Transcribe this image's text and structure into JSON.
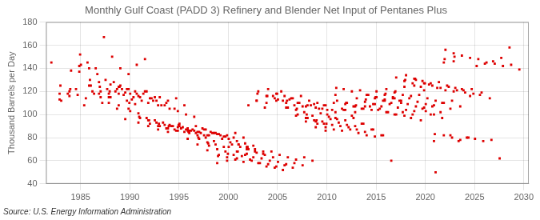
{
  "chart_data": {
    "type": "scatter",
    "title": "Monthly Gulf Coast (PADD 3) Refinery and Blender Net Input of Pentanes Plus",
    "ylabel": "Thousand Barrels per Day",
    "annotations": [
      "Source: U.S. Energy Information Administration"
    ],
    "color": "#dd0000",
    "marker": "square",
    "grid": true,
    "xlim": [
      1981.5,
      2030.5
    ],
    "ylim": [
      40,
      180
    ],
    "xticks": [
      1985,
      1990,
      1995,
      2000,
      2005,
      2010,
      2015,
      2020,
      2025,
      2030
    ],
    "yticks": [
      40,
      60,
      80,
      100,
      120,
      140,
      160,
      180
    ],
    "x": [
      1982.0417,
      1982.875,
      1983.7083,
      1984.5417,
      1985.375,
      1986.2083,
      1987.0417,
      1987.875,
      1988.7083,
      1989.5417,
      1982.875,
      1982.9583,
      1983.0417,
      1983.875,
      1984.7083,
      1985.5417,
      1986.375,
      1987.2083,
      1988.0417,
      1988.875,
      1989.7083,
      1990.5417,
      1983.875,
      1983.9583,
      1984.0417,
      1984.875,
      1985.7083,
      1986.5417,
      1987.375,
      1988.2083,
      1989.0417,
      1989.875,
      1990.7083,
      1991.5417,
      1984.875,
      1984.9583,
      1985.0417,
      1985.875,
      1986.7083,
      1987.5417,
      1988.375,
      1989.2083,
      1990.0417,
      1990.875,
      1991.7083,
      1992.5417,
      1985.875,
      1985.9583,
      1986.0417,
      1986.875,
      1987.7083,
      1988.5417,
      1989.375,
      1990.2083,
      1991.0417,
      1991.875,
      1992.7083,
      1993.5417,
      1986.875,
      1986.9583,
      1987.0417,
      1987.875,
      1988.7083,
      1989.5417,
      1990.375,
      1991.2083,
      1992.0417,
      1992.875,
      1993.7083,
      1994.5417,
      1987.875,
      1987.9583,
      1988.0417,
      1988.875,
      1989.7083,
      1990.5417,
      1991.375,
      1992.2083,
      1993.0417,
      1993.875,
      1994.7083,
      1995.5417,
      1988.875,
      1988.9583,
      1989.0417,
      1989.875,
      1990.7083,
      1991.5417,
      1992.375,
      1993.2083,
      1994.0417,
      1994.875,
      1995.7083,
      1996.5417,
      1989.875,
      1989.9583,
      1990.0417,
      1990.875,
      1991.7083,
      1992.5417,
      1993.375,
      1994.2083,
      1995.0417,
      1995.875,
      1996.7083,
      1997.5417,
      1990.875,
      1990.9583,
      1991.0417,
      1991.875,
      1992.7083,
      1993.5417,
      1994.375,
      1995.2083,
      1996.0417,
      1996.875,
      1997.7083,
      1998.5417,
      1991.875,
      1991.9583,
      1992.0417,
      1992.875,
      1993.7083,
      1994.5417,
      1995.375,
      1996.2083,
      1997.0417,
      1997.875,
      1998.7083,
      1999.5417,
      1992.875,
      1992.9583,
      1993.0417,
      1993.875,
      1994.7083,
      1995.5417,
      1996.375,
      1997.2083,
      1998.0417,
      1998.875,
      1999.7083,
      2000.5417,
      1993.875,
      1993.9583,
      1994.0417,
      1994.875,
      1995.7083,
      1996.5417,
      1997.375,
      1998.2083,
      1999.0417,
      1999.875,
      2000.7083,
      2001.5417,
      1994.875,
      1994.9583,
      1995.0417,
      1995.875,
      1996.7083,
      1997.5417,
      1998.375,
      1999.2083,
      2000.0417,
      2000.875,
      2001.7083,
      2002.5417,
      1995.875,
      1995.9583,
      1996.0417,
      1996.875,
      1997.7083,
      1998.5417,
      1999.375,
      2000.2083,
      2001.0417,
      2001.875,
      2002.7083,
      2003.5417,
      1996.875,
      1996.9583,
      1997.0417,
      1997.875,
      1998.7083,
      1999.5417,
      2000.375,
      2001.2083,
      2002.0417,
      2002.875,
      2003.7083,
      2004.5417,
      1997.875,
      1997.9583,
      1998.0417,
      1998.875,
      1999.7083,
      2000.5417,
      2001.375,
      2002.2083,
      2003.0417,
      2003.875,
      2004.7083,
      2005.5417,
      1998.875,
      1998.9583,
      1999.0417,
      1999.875,
      2000.7083,
      2001.5417,
      2002.375,
      2003.2083,
      2004.0417,
      2004.875,
      2005.7083,
      2006.5417,
      1999.875,
      1999.9583,
      2000.0417,
      2000.875,
      2001.7083,
      2002.5417,
      2003.375,
      2004.2083,
      2005.0417,
      2005.875,
      2006.7083,
      2007.5417,
      2000.875,
      2000.9583,
      2001.0417,
      2001.875,
      2002.7083,
      2003.5417,
      2004.375,
      2005.2083,
      2006.0417,
      2006.875,
      2007.7083,
      2008.5417,
      2001.875,
      2001.9583,
      2002.0417,
      2002.875,
      2003.7083,
      2004.5417,
      2005.375,
      2006.2083,
      2007.0417,
      2007.875,
      2008.7083,
      2009.5417,
      2002.875,
      2002.9583,
      2003.0417,
      2003.875,
      2004.7083,
      2005.5417,
      2006.375,
      2007.2083,
      2008.0417,
      2008.875,
      2009.7083,
      2010.5417,
      2003.875,
      2003.9583,
      2004.0417,
      2004.875,
      2005.7083,
      2006.5417,
      2007.375,
      2008.2083,
      2009.0417,
      2009.875,
      2010.7083,
      2011.5417,
      2004.875,
      2004.9583,
      2005.0417,
      2005.875,
      2006.7083,
      2007.5417,
      2008.375,
      2009.2083,
      2010.0417,
      2010.875,
      2011.7083,
      2012.5417,
      2005.875,
      2005.9583,
      2006.0417,
      2006.875,
      2007.7083,
      2008.5417,
      2009.375,
      2010.2083,
      2011.0417,
      2011.875,
      2012.7083,
      2013.5417,
      2006.875,
      2006.9583,
      2007.0417,
      2007.875,
      2008.7083,
      2009.5417,
      2010.375,
      2011.2083,
      2012.0417,
      2012.875,
      2013.7083,
      2014.5417,
      2007.875,
      2007.9583,
      2008.0417,
      2008.875,
      2009.7083,
      2010.5417,
      2011.375,
      2012.2083,
      2013.0417,
      2013.875,
      2014.7083,
      2015.5417,
      2008.875,
      2008.9583,
      2009.0417,
      2009.875,
      2010.7083,
      2011.5417,
      2012.375,
      2013.2083,
      2014.0417,
      2014.875,
      2015.7083,
      2016.5417,
      2009.875,
      2009.9583,
      2010.0417,
      2010.875,
      2011.7083,
      2012.5417,
      2013.375,
      2014.2083,
      2015.0417,
      2015.875,
      2016.7083,
      2017.5417,
      2010.875,
      2010.9583,
      2011.0417,
      2011.875,
      2012.7083,
      2013.5417,
      2014.375,
      2015.2083,
      2016.0417,
      2016.875,
      2017.7083,
      2018.5417,
      2011.875,
      2011.9583,
      2012.0417,
      2012.875,
      2013.7083,
      2014.5417,
      2015.375,
      2016.2083,
      2017.0417,
      2017.875,
      2018.7083,
      2019.5417,
      2012.875,
      2012.9583,
      2013.0417,
      2013.875,
      2014.7083,
      2015.5417,
      2016.375,
      2017.2083,
      2018.0417,
      2018.875,
      2019.7083,
      2020.5417,
      2013.875,
      2013.9583,
      2014.0417,
      2014.875,
      2015.7083,
      2016.5417,
      2017.375,
      2018.2083,
      2019.0417,
      2019.875,
      2020.7083,
      2021.5417,
      2014.875,
      2014.9583,
      2015.0417,
      2015.875,
      2016.7083,
      2017.5417,
      2018.375,
      2019.2083,
      2020.0417,
      2020.875,
      2021.7083,
      2022.5417,
      2015.875,
      2015.9583,
      2016.0417,
      2016.875,
      2017.7083,
      2018.5417,
      2019.375,
      2020.2083,
      2021.0417,
      2021.875,
      2022.7083,
      2023.5417,
      2016.875,
      2016.9583,
      2017.0417,
      2017.875,
      2018.7083,
      2019.5417,
      2020.375,
      2021.2083,
      2022.0417,
      2022.875,
      2023.7083,
      2024.5417,
      2017.875,
      2017.9583,
      2018.0417,
      2018.875,
      2019.7083,
      2020.5417,
      2021.375,
      2022.2083,
      2023.0417,
      2023.875,
      2024.7083,
      2025.5417,
      2018.875,
      2018.9583,
      2019.0417,
      2019.875,
      2020.7083,
      2021.5417,
      2022.375,
      2023.2083,
      2024.0417,
      2024.875,
      2025.7083,
      2026.5417,
      2019.875,
      2019.9583,
      2020.0417,
      2020.875,
      2021.7083,
      2022.5417,
      2023.375,
      2024.2083,
      2025.0417,
      2025.875,
      2026.7083,
      2027.5417,
      2020.875,
      2020.9583,
      2021.0417,
      2021.875,
      2022.7083,
      2023.5417,
      2024.375,
      2025.2083,
      2026.0417,
      2026.875,
      2027.7083,
      2028.5417,
      2021.875,
      2021.9583,
      2022.0417,
      2022.875,
      2023.7083,
      2024.5417,
      2025.375,
      2026.2083,
      2027.0417,
      2027.875,
      2028.7083,
      2029.5417,
      2022.875,
      2022.9583
    ],
    "values": [
      145,
      113,
      118,
      122,
      108,
      120,
      115,
      110,
      105,
      96,
      118,
      125,
      112,
      120,
      117,
      114,
      118,
      110,
      115,
      108,
      112,
      109,
      116,
      122,
      138,
      142,
      145,
      140,
      167,
      150,
      140,
      135,
      143,
      148,
      137,
      152,
      143,
      140,
      135,
      130,
      128,
      122,
      118,
      116,
      120,
      115,
      125,
      130,
      125,
      128,
      122,
      120,
      117,
      113,
      115,
      110,
      112,
      108,
      118,
      124,
      120,
      118,
      122,
      119,
      115,
      112,
      114,
      108,
      110,
      105,
      115,
      120,
      126,
      124,
      122,
      120,
      118,
      114,
      115,
      112,
      114,
      108,
      118,
      124,
      125,
      122,
      118,
      120,
      112,
      108,
      105,
      103,
      100,
      98,
      105,
      110,
      103,
      101,
      97,
      95,
      93,
      90,
      92,
      88,
      90,
      87,
      93,
      98,
      97,
      95,
      93,
      91,
      90,
      88,
      86,
      85,
      87,
      84,
      90,
      95,
      92,
      90,
      88,
      87,
      89,
      86,
      85,
      82,
      84,
      81,
      87,
      92,
      90,
      88,
      86,
      85,
      87,
      84,
      82,
      83,
      81,
      80,
      85,
      90,
      91,
      89,
      87,
      86,
      88,
      85,
      83,
      82,
      84,
      80,
      86,
      91,
      90,
      86,
      84,
      82,
      84,
      82,
      79,
      77,
      75,
      73,
      79,
      85,
      84,
      82,
      80,
      77,
      79,
      76,
      74,
      72,
      70,
      68,
      74,
      80,
      79,
      76,
      74,
      72,
      74,
      72,
      70,
      67,
      65,
      63,
      69,
      75,
      73,
      70,
      68,
      65,
      64,
      61,
      58,
      55,
      54,
      52,
      58,
      64,
      65,
      63,
      61,
      59,
      60,
      58,
      57,
      55,
      56,
      54,
      60,
      66,
      72,
      68,
      65,
      63,
      62,
      60,
      59,
      57,
      58,
      56,
      62,
      68,
      74,
      70,
      68,
      66,
      68,
      65,
      63,
      61,
      63,
      60,
      66,
      72,
      108,
      112,
      106,
      116,
      120,
      113,
      110,
      107,
      109,
      105,
      112,
      118,
      120,
      116,
      114,
      112,
      114,
      110,
      108,
      106,
      108,
      104,
      110,
      116,
      122,
      118,
      116,
      114,
      116,
      112,
      110,
      108,
      110,
      105,
      112,
      118,
      113,
      110,
      108,
      107,
      108,
      105,
      104,
      102,
      104,
      99,
      106,
      112,
      106,
      104,
      102,
      99,
      101,
      98,
      96,
      95,
      97,
      92,
      99,
      105,
      100,
      97,
      95,
      94,
      96,
      93,
      91,
      90,
      92,
      87,
      94,
      100,
      97,
      94,
      92,
      91,
      90,
      89,
      87,
      85,
      87,
      82,
      89,
      95,
      92,
      89,
      87,
      86,
      87,
      84,
      82,
      81,
      82,
      60,
      86,
      92,
      100,
      97,
      122,
      120,
      121,
      117,
      115,
      113,
      115,
      110,
      117,
      123,
      112,
      109,
      107,
      105,
      107,
      104,
      102,
      100,
      102,
      97,
      104,
      110,
      110,
      107,
      105,
      104,
      105,
      102,
      100,
      99,
      100,
      95,
      102,
      108,
      114,
      111,
      109,
      107,
      109,
      106,
      104,
      103,
      105,
      100,
      107,
      113,
      117,
      114,
      112,
      110,
      112,
      109,
      107,
      106,
      107,
      102,
      109,
      115,
      120,
      117,
      114,
      112,
      114,
      111,
      109,
      108,
      110,
      105,
      112,
      118,
      122,
      119,
      117,
      116,
      117,
      114,
      112,
      110,
      112,
      107,
      114,
      120,
      132,
      129,
      127,
      124,
      126,
      123,
      121,
      120,
      122,
      116,
      124,
      130,
      134,
      131,
      129,
      127,
      128,
      125,
      123,
      121,
      122,
      117,
      125,
      131,
      130,
      127,
      125,
      123,
      124,
      121,
      119,
      118,
      119,
      114,
      121,
      127,
      103,
      100,
      97,
      82,
      77,
      80,
      79,
      77,
      78,
      62,
      77,
      83,
      50,
      82,
      80,
      78,
      80,
      142,
      144,
      146,
      149,
      158,
      145,
      148,
      156,
      153,
      151,
      149,
      148,
      145,
      144,
      142,
      143,
      139,
      146,
      150
    ]
  }
}
